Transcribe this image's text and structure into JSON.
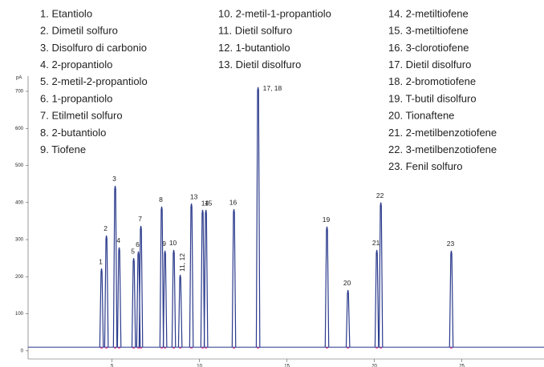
{
  "chart_data": {
    "type": "line",
    "y_label": "pA",
    "compounds": [
      "1. Etantiolo",
      "2. Dimetil solfuro",
      "3. Disolfuro di carbonio",
      "4. 2-propantiolo",
      "5. 2-metil-2-propantiolo",
      "6. 1-propantiolo",
      "7. Etilmetil solfuro",
      "8. 2-butantiolo",
      "9. Tiofene",
      "10. 2-metil-1-propantiolo",
      "11. Dietil solfuro",
      "12. 1-butantiolo",
      "13. Dietil disolfuro",
      "14. 2-metiltiofene",
      "15. 3-metiltiofene",
      "16. 3-clorotiofene",
      "17. Dietil disolfuro",
      "18. 2-bromotiofene",
      "19. T-butil disolfuro",
      "20. Tionaftene",
      "21. 2-metilbenzotiofene",
      "22. 3-metilbenzotiofene",
      "23. Fenil solfuro"
    ],
    "peak_labels": [
      "1",
      "2",
      "3",
      "4",
      "5",
      "6",
      "7",
      "8",
      "9",
      "10",
      "11, 12",
      "13",
      "14",
      "15",
      "16",
      "17, 18",
      "19",
      "20",
      "21",
      "22",
      "23"
    ],
    "x": [
      4.4,
      4.68,
      5.18,
      5.41,
      6.24,
      6.51,
      6.65,
      7.84,
      8.03,
      8.53,
      8.9,
      9.54,
      10.18,
      10.37,
      11.97,
      13.35,
      17.29,
      18.49,
      20.14,
      20.37,
      24.4
    ],
    "values": [
      222,
      311,
      445,
      279,
      250,
      268,
      337,
      389,
      270,
      272,
      205,
      397,
      380,
      380,
      382,
      711,
      335,
      164,
      272,
      400,
      270
    ],
    "baseline": 10,
    "color": "#2b3a8c",
    "xlim": [
      0.2,
      29.7
    ],
    "xticks": [
      5,
      10,
      15,
      20,
      25
    ],
    "ylim": [
      -22,
      741
    ],
    "yticks": [
      0,
      100,
      200,
      300,
      400,
      500,
      600,
      700
    ]
  }
}
